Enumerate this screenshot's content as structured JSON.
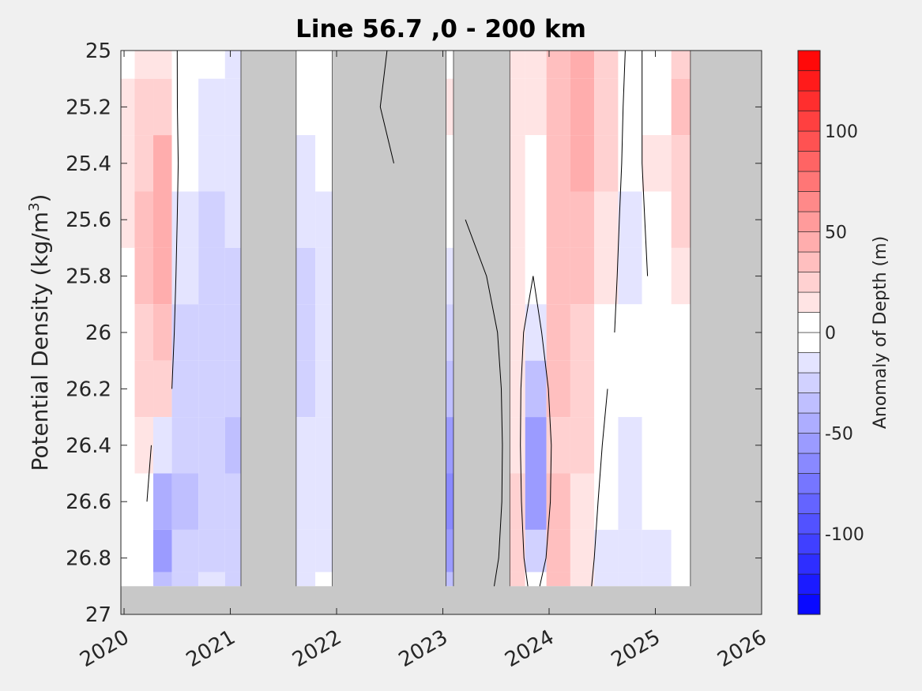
{
  "chart_data": {
    "type": "heatmap",
    "title": "Line 56.7 ,0 - 200 km",
    "ylabel": "Potential Density (kg/m",
    "ylabel_sup": "3",
    "ylabel_close": ")",
    "colorbar_label": "Anomaly of Depth (m)",
    "x_ticks": [
      "2020",
      "2021",
      "2022",
      "2023",
      "2024",
      "2025",
      "2026"
    ],
    "x_tick_values": [
      2020,
      2021,
      2022,
      2023,
      2024,
      2025,
      2026
    ],
    "xlim": [
      2019.97,
      2026.0
    ],
    "y_ticks": [
      "25",
      "25.2",
      "25.4",
      "25.6",
      "25.8",
      "26",
      "26.2",
      "26.4",
      "26.6",
      "26.8",
      "27"
    ],
    "y_tick_values": [
      25,
      25.2,
      25.4,
      25.6,
      25.8,
      26,
      26.2,
      26.4,
      26.6,
      26.8,
      27
    ],
    "ylim": [
      25,
      27
    ],
    "y_reversed": true,
    "colorbar_ticks": [
      "100",
      "50",
      "0",
      "-50",
      "-100"
    ],
    "colorbar_tick_values": [
      100,
      50,
      0,
      -50,
      -100
    ],
    "clim": [
      -140,
      140
    ],
    "contour_levels": 28,
    "grid": false,
    "colors": {
      "positive": "#ff0000",
      "negative": "#0000ff",
      "zero": "#ffffff",
      "nodata": "#c8c8c8",
      "axes_bg": "#ffffff",
      "figure_bg": "#f0f0f0",
      "contour": "#000000"
    },
    "nodata_periods": [
      [
        2021.1,
        2021.62
      ],
      [
        2021.96,
        2023.03
      ],
      [
        2023.1,
        2023.63
      ],
      [
        2025.33,
        2026.0
      ]
    ],
    "bottom_nodata_from": 26.9,
    "series": [
      {
        "time": 2020.0,
        "anomaly": [
          8,
          10,
          12,
          10,
          8,
          6,
          4,
          2,
          0,
          -2,
          -4
        ]
      },
      {
        "time": 2020.2,
        "anomaly": [
          18,
          20,
          25,
          30,
          30,
          25,
          20,
          12,
          5,
          0,
          -5
        ]
      },
      {
        "time": 2020.35,
        "anomaly": [
          15,
          25,
          40,
          45,
          40,
          35,
          25,
          -20,
          -45,
          -55,
          -40
        ]
      },
      {
        "time": 2020.55,
        "anomaly": [
          -5,
          -8,
          -10,
          -15,
          -18,
          -22,
          -25,
          -30,
          -35,
          -30,
          -25
        ]
      },
      {
        "time": 2020.85,
        "anomaly": [
          -10,
          -15,
          -20,
          -22,
          -25,
          -28,
          -30,
          -30,
          -28,
          -25,
          -20
        ]
      },
      {
        "time": 2021.05,
        "anomaly": [
          -12,
          -14,
          -18,
          -20,
          -24,
          -26,
          -30,
          -32,
          -30,
          -28,
          -26
        ]
      },
      {
        "time": 2021.7,
        "anomaly": [
          -8,
          -10,
          -14,
          -18,
          -22,
          -24,
          -22,
          -20,
          -18,
          -16,
          -14
        ]
      },
      {
        "time": 2021.9,
        "anomaly": [
          -5,
          -8,
          -10,
          -12,
          -14,
          -16,
          -18,
          -16,
          -14,
          -12,
          -10
        ]
      },
      {
        "time": 2023.05,
        "anomaly": [
          5,
          10,
          8,
          -5,
          -15,
          -25,
          -40,
          -55,
          -70,
          -60,
          -40
        ]
      },
      {
        "time": 2023.7,
        "anomaly": [
          15,
          18,
          18,
          15,
          12,
          10,
          12,
          15,
          20,
          22,
          20
        ]
      },
      {
        "time": 2023.85,
        "anomaly": [
          10,
          10,
          8,
          5,
          0,
          -15,
          -40,
          -60,
          -55,
          -30,
          -10
        ]
      },
      {
        "time": 2024.1,
        "anomaly": [
          30,
          32,
          35,
          38,
          35,
          32,
          30,
          28,
          30,
          32,
          30
        ]
      },
      {
        "time": 2024.3,
        "anomaly": [
          45,
          45,
          42,
          38,
          32,
          28,
          25,
          20,
          18,
          15,
          12
        ]
      },
      {
        "time": 2024.55,
        "anomaly": [
          25,
          22,
          20,
          15,
          10,
          5,
          0,
          -5,
          -10,
          -15,
          -18
        ]
      },
      {
        "time": 2024.75,
        "anomaly": [
          -5,
          -8,
          -10,
          -12,
          -12,
          -10,
          -10,
          -12,
          -14,
          -15,
          -15
        ]
      },
      {
        "time": 2025.0,
        "anomaly": [
          5,
          8,
          10,
          8,
          5,
          0,
          -5,
          -8,
          -10,
          -12,
          -15
        ]
      },
      {
        "time": 2025.3,
        "anomaly": [
          25,
          30,
          25,
          20,
          10,
          5,
          0,
          -5,
          -5,
          -5,
          -5
        ]
      }
    ],
    "series_depths": [
      25.0,
      25.2,
      25.4,
      25.6,
      25.8,
      26.0,
      26.2,
      26.4,
      26.6,
      26.8,
      26.9
    ]
  }
}
